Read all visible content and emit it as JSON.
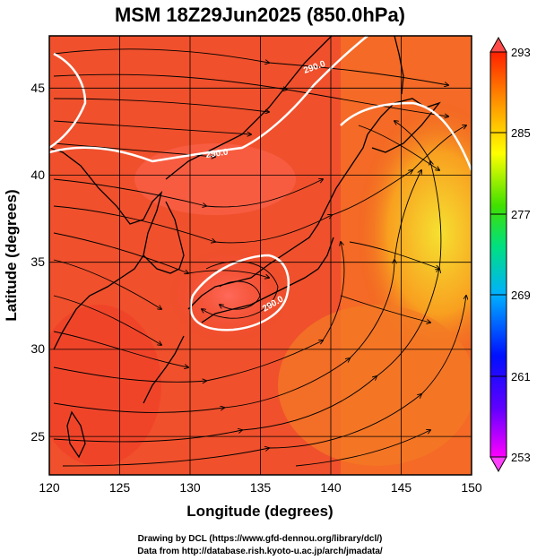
{
  "title": "MSM 18Z29Jun2025 (850.0hPa)",
  "x_axis": {
    "label": "Longitude (degrees)",
    "ticks": [
      "120",
      "125",
      "130",
      "135",
      "140",
      "145",
      "150"
    ]
  },
  "y_axis": {
    "label": "Latitude  (degrees)",
    "ticks": [
      "45",
      "40",
      "35",
      "30",
      "25"
    ]
  },
  "colorbar": {
    "ticks": [
      "293",
      "285",
      "277",
      "269",
      "261",
      "253"
    ]
  },
  "contour_labels": [
    "290.0",
    "290.0",
    "290.0"
  ],
  "credits": {
    "line1": "Drawing by DCL (https://www.gfd-dennou.org/library/dcl/)",
    "line2": "Data from http://database.rish.kyoto-u.ac.jp/arch/jmadata/"
  },
  "map_data": {
    "lon_range": [
      120,
      150
    ],
    "lat_range": [
      22.4,
      47.6
    ],
    "level_hPa": 850,
    "variable": "temperature (K)",
    "color_range": [
      253,
      293
    ],
    "contour_interval_K": 10,
    "palette": [
      "#ff00ff",
      "#0000ff",
      "#00b0ff",
      "#00e060",
      "#ffff00",
      "#ff8000",
      "#ff0000"
    ]
  }
}
